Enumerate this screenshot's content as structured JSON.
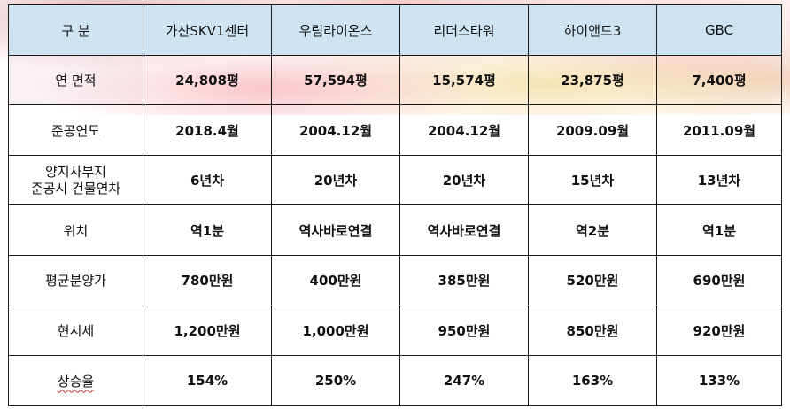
{
  "header": {
    "label": "구 분",
    "columns": [
      "가산SKV1센터",
      "우림라이온스",
      "리더스타워",
      "하이앤드3",
      "GBC"
    ]
  },
  "rows": [
    {
      "label": "연 면적",
      "values": [
        "24,808평",
        "57,594평",
        "15,574평",
        "23,875평",
        "7,400평"
      ]
    },
    {
      "label": "준공연도",
      "values": [
        "2018.4월",
        "2004.12월",
        "2004.12월",
        "2009.09월",
        "2011.09월"
      ]
    },
    {
      "label_lines": [
        "양지사부지",
        "준공시 건물연차"
      ],
      "values": [
        "6년차",
        "20년차",
        "20년차",
        "15년차",
        "13년차"
      ]
    },
    {
      "label": "위치",
      "values": [
        "역1분",
        "역사바로연결",
        "역사바로연결",
        "역2분",
        "역1분"
      ]
    },
    {
      "label": "평균분양가",
      "values": [
        "780만원",
        "400만원",
        "385만원",
        "520만원",
        "690만원"
      ]
    },
    {
      "label": "현시세",
      "values": [
        "1,200만원",
        "1,000만원",
        "950만원",
        "850만원",
        "920만원"
      ]
    },
    {
      "label": "상승율",
      "values": [
        "154%",
        "250%",
        "247%",
        "163%",
        "133%"
      ]
    }
  ],
  "colors": {
    "header_bg": "#cfe4f2",
    "rate_text": "#c0282d",
    "border": "#1a1a1a"
  }
}
